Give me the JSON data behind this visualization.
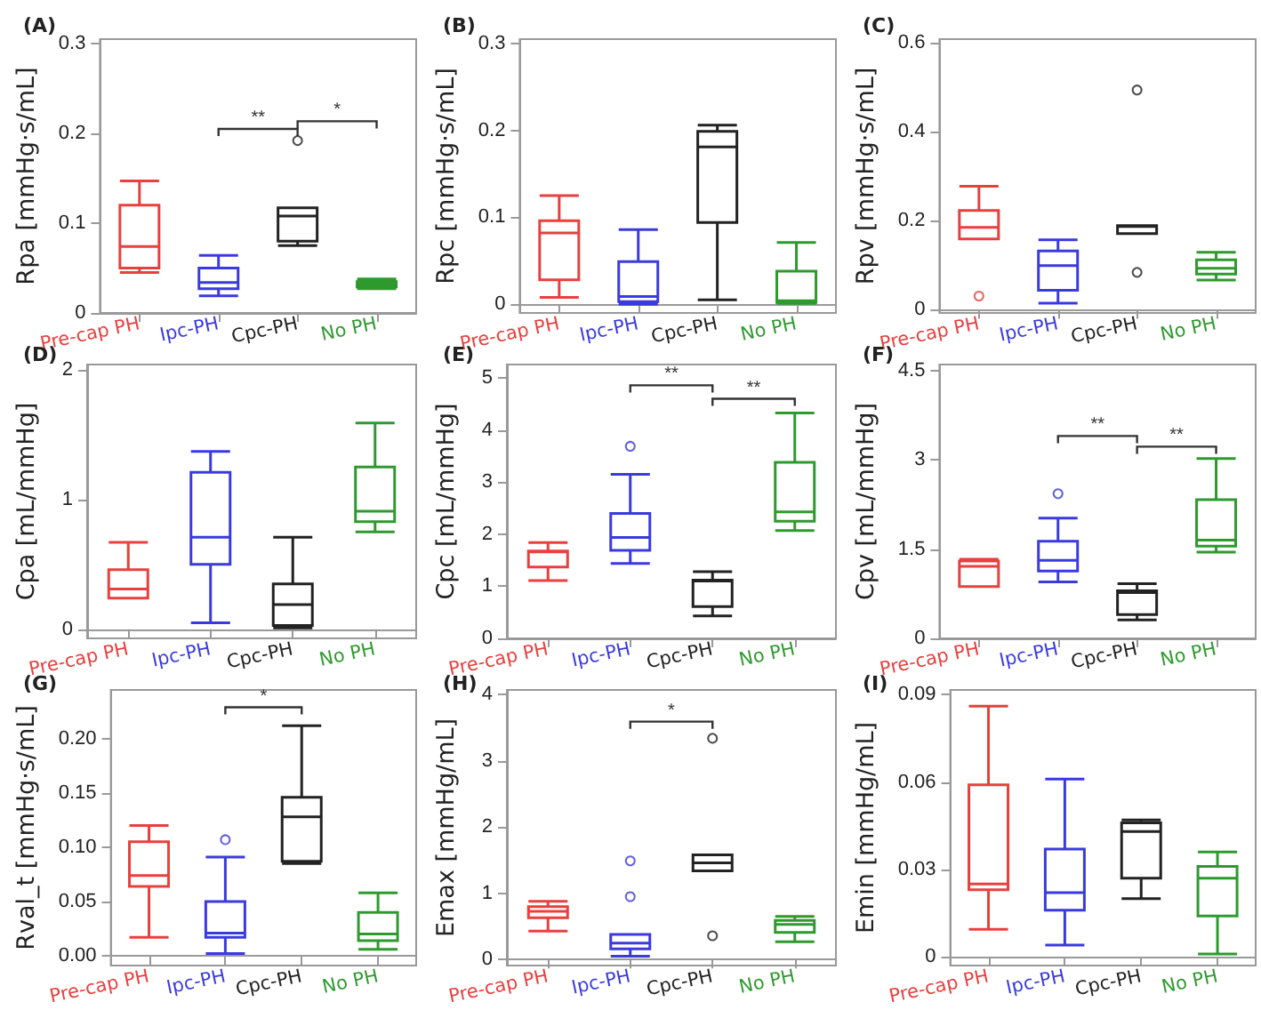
{
  "chart_data": [
    {
      "type": "box",
      "title": "(A)",
      "ylabel": "Rpa [mmHg·s/mL]",
      "categories": [
        "Pre-cap PH",
        "Ipc-PH",
        "Cpc-PH",
        "No PH"
      ],
      "colors": [
        "#e8403f",
        "#3a3adf",
        "#222222",
        "#2e9a2e"
      ],
      "ylim": [
        0,
        0.305
      ],
      "yticks": [
        0,
        0.1,
        0.2,
        0.3
      ],
      "boxes": [
        {
          "low": 0.045,
          "q1": 0.05,
          "median": 0.074,
          "q3": 0.12,
          "high": 0.147
        },
        {
          "low": 0.019,
          "q1": 0.027,
          "median": 0.034,
          "q3": 0.05,
          "high": 0.064
        },
        {
          "low": 0.075,
          "q1": 0.08,
          "median": 0.108,
          "q3": 0.117,
          "high": 0.117,
          "outliers": [
            0.192
          ]
        },
        {
          "low": 0.027,
          "q1": 0.029,
          "median": 0.032,
          "q3": 0.035,
          "high": 0.038
        }
      ],
      "annotations": [
        "**",
        "*"
      ]
    },
    {
      "type": "box",
      "title": "(B)",
      "ylabel": "Rpc [mmHg·s/mL]",
      "categories": [
        "Pre-cap PH",
        "Ipc-PH",
        "Cpc-PH",
        "No PH"
      ],
      "colors": [
        "#e8403f",
        "#3a3adf",
        "#222222",
        "#2e9a2e"
      ],
      "ylim": [
        -0.01,
        0.305
      ],
      "yticks": [
        0,
        0.1,
        0.2,
        0.3
      ],
      "boxes": [
        {
          "low": 0.008,
          "q1": 0.028,
          "median": 0.082,
          "q3": 0.096,
          "high": 0.125
        },
        {
          "low": 0.0,
          "q1": 0.003,
          "median": 0.009,
          "q3": 0.049,
          "high": 0.086
        },
        {
          "low": 0.005,
          "q1": 0.094,
          "median": 0.181,
          "q3": 0.199,
          "high": 0.206
        },
        {
          "low": 0.001,
          "q1": 0.002,
          "median": 0.004,
          "q3": 0.038,
          "high": 0.071
        }
      ]
    },
    {
      "type": "box",
      "title": "(C)",
      "ylabel": "Rpv [mmHg·s/mL]",
      "categories": [
        "Pre-cap PH",
        "Ipc-PH",
        "Cpc-PH",
        "No PH"
      ],
      "colors": [
        "#e8403f",
        "#3a3adf",
        "#222222",
        "#2e9a2e"
      ],
      "ylim": [
        -0.007,
        0.607
      ],
      "yticks": [
        0,
        0.2,
        0.4,
        0.6
      ],
      "boxes": [
        {
          "low": 0.159,
          "q1": 0.159,
          "median": 0.185,
          "q3": 0.223,
          "high": 0.277,
          "outliers": [
            0.031
          ]
        },
        {
          "low": 0.015,
          "q1": 0.044,
          "median": 0.099,
          "q3": 0.132,
          "high": 0.157
        },
        {
          "low": 0.171,
          "q1": 0.171,
          "median": 0.187,
          "q3": 0.189,
          "high": 0.189,
          "outliers": [
            0.493,
            0.084
          ]
        },
        {
          "low": 0.067,
          "q1": 0.08,
          "median": 0.093,
          "q3": 0.112,
          "high": 0.129
        }
      ]
    },
    {
      "type": "box",
      "title": "(D)",
      "ylabel": "Cpa [mL/mmHg]",
      "categories": [
        "Pre-cap PH",
        "Ipc-PH",
        "Cpc-PH",
        "No PH"
      ],
      "colors": [
        "#e8403f",
        "#3a3adf",
        "#222222",
        "#2e9a2e"
      ],
      "ylim": [
        -0.07,
        2.04
      ],
      "yticks": [
        0,
        1,
        2
      ],
      "boxes": [
        {
          "low": 0.24,
          "q1": 0.24,
          "median": 0.31,
          "q3": 0.46,
          "high": 0.67
        },
        {
          "low": 0.05,
          "q1": 0.5,
          "median": 0.71,
          "q3": 1.21,
          "high": 1.37
        },
        {
          "low": 0.01,
          "q1": 0.03,
          "median": 0.19,
          "q3": 0.35,
          "high": 0.71
        },
        {
          "low": 0.75,
          "q1": 0.83,
          "median": 0.91,
          "q3": 1.25,
          "high": 1.59
        }
      ]
    },
    {
      "type": "box",
      "title": "(E)",
      "ylabel": "Cpc [mL/mmHg]",
      "categories": [
        "Pre-cap PH",
        "Ipc-PH",
        "Cpc-PH",
        "No PH"
      ],
      "colors": [
        "#e8403f",
        "#3a3adf",
        "#222222",
        "#2e9a2e"
      ],
      "ylim": [
        0,
        5.26
      ],
      "yticks": [
        0,
        1,
        2,
        3,
        4,
        5
      ],
      "boxes": [
        {
          "low": 1.11,
          "q1": 1.37,
          "median": 1.66,
          "q3": 1.68,
          "high": 1.84
        },
        {
          "low": 1.44,
          "q1": 1.69,
          "median": 1.94,
          "q3": 2.4,
          "high": 3.15,
          "outliers": [
            3.69
          ]
        },
        {
          "low": 0.43,
          "q1": 0.61,
          "median": 1.1,
          "q3": 1.12,
          "high": 1.28
        },
        {
          "low": 2.07,
          "q1": 2.25,
          "median": 2.43,
          "q3": 3.38,
          "high": 4.33
        }
      ],
      "annotations": [
        "**",
        "**"
      ]
    },
    {
      "type": "box",
      "title": "(F)",
      "ylabel": "Cpv [mL/mmHg]",
      "categories": [
        "Pre-cap PH",
        "Ipc-PH",
        "Cpc-PH",
        "No PH"
      ],
      "colors": [
        "#e8403f",
        "#3a3adf",
        "#222222",
        "#2e9a2e"
      ],
      "ylim": [
        0,
        4.6
      ],
      "yticks": [
        0,
        1.5,
        3,
        4.5
      ],
      "boxes": [
        {
          "low": 0.87,
          "q1": 0.87,
          "median": 1.21,
          "q3": 1.3,
          "high": 1.33
        },
        {
          "low": 0.95,
          "q1": 1.13,
          "median": 1.31,
          "q3": 1.63,
          "high": 2.02,
          "outliers": [
            2.43
          ]
        },
        {
          "low": 0.31,
          "q1": 0.4,
          "median": 0.77,
          "q3": 0.8,
          "high": 0.92
        },
        {
          "low": 1.45,
          "q1": 1.55,
          "median": 1.65,
          "q3": 2.33,
          "high": 3.02
        }
      ],
      "annotations": [
        "**",
        "**"
      ]
    },
    {
      "type": "box",
      "title": "(G)",
      "ylabel": "Rval_t [mmHg·s/mL]",
      "categories": [
        "Pre-cap PH",
        "Ipc-PH",
        "Cpc-PH",
        "No PH"
      ],
      "colors": [
        "#e8403f",
        "#3a3adf",
        "#222222",
        "#2e9a2e"
      ],
      "ylim": [
        -0.009,
        0.245
      ],
      "yticks": [
        {
          "value": 0,
          "label": "0.00"
        },
        {
          "value": 0.05,
          "label": "0.05"
        },
        {
          "value": 0.1,
          "label": "0.10"
        },
        {
          "value": 0.15,
          "label": "0.15"
        },
        {
          "value": 0.2,
          "label": "0.20"
        }
      ],
      "boxes": [
        {
          "low": 0.017,
          "q1": 0.064,
          "median": 0.074,
          "q3": 0.105,
          "high": 0.12
        },
        {
          "low": 0.002,
          "q1": 0.017,
          "median": 0.021,
          "q3": 0.05,
          "high": 0.091,
          "outliers": [
            0.107
          ]
        },
        {
          "low": 0.085,
          "q1": 0.087,
          "median": 0.128,
          "q3": 0.146,
          "high": 0.212
        },
        {
          "low": 0.006,
          "q1": 0.014,
          "median": 0.02,
          "q3": 0.04,
          "high": 0.058
        }
      ],
      "annotations": [
        "*"
      ]
    },
    {
      "type": "box",
      "title": "(H)",
      "ylabel": "Emax [mmHg/mL]",
      "categories": [
        "Pre-cap PH",
        "Ipc-PH",
        "Cpc-PH",
        "No PH"
      ],
      "colors": [
        "#e8403f",
        "#3a3adf",
        "#222222",
        "#2e9a2e"
      ],
      "ylim": [
        -0.09,
        4.07
      ],
      "yticks": [
        0,
        1,
        2,
        3,
        4
      ],
      "boxes": [
        {
          "low": 0.43,
          "q1": 0.63,
          "median": 0.73,
          "q3": 0.8,
          "high": 0.88
        },
        {
          "low": 0.05,
          "q1": 0.16,
          "median": 0.25,
          "q3": 0.38,
          "high": 0.38,
          "outliers": [
            0.95,
            1.49
          ]
        },
        {
          "low": 1.34,
          "q1": 1.34,
          "median": 1.46,
          "q3": 1.58,
          "high": 1.58,
          "outliers": [
            3.34,
            0.36
          ]
        },
        {
          "low": 0.27,
          "q1": 0.41,
          "median": 0.53,
          "q3": 0.59,
          "high": 0.65
        }
      ],
      "annotations": [
        "*"
      ]
    },
    {
      "type": "box",
      "title": "(I)",
      "ylabel": "Emin [mmHg/mL]",
      "categories": [
        "Pre-cap PH",
        "Ipc-PH",
        "Cpc-PH",
        "No PH"
      ],
      "colors": [
        "#e8403f",
        "#3a3adf",
        "#222222",
        "#2e9a2e"
      ],
      "ylim": [
        -0.003,
        0.0916
      ],
      "yticks": [
        0,
        0.03,
        0.06,
        0.09
      ],
      "boxes": [
        {
          "low": 0.0094,
          "q1": 0.023,
          "median": 0.025,
          "q3": 0.059,
          "high": 0.086
        },
        {
          "low": 0.004,
          "q1": 0.016,
          "median": 0.022,
          "q3": 0.037,
          "high": 0.061
        },
        {
          "low": 0.02,
          "q1": 0.027,
          "median": 0.043,
          "q3": 0.046,
          "high": 0.047
        },
        {
          "low": 0.001,
          "q1": 0.014,
          "median": 0.027,
          "q3": 0.031,
          "high": 0.036
        }
      ]
    }
  ]
}
